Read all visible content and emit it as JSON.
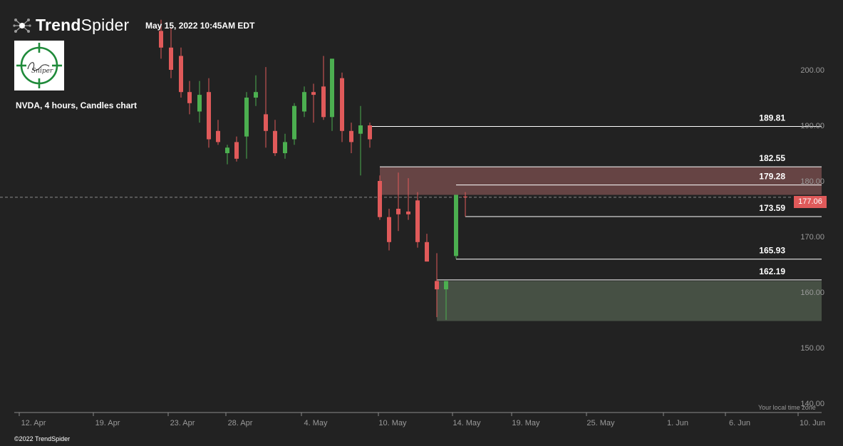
{
  "header": {
    "brand_bold": "Trend",
    "brand_light": "Spider",
    "timestamp": "May 15, 2022 10:45AM EDT"
  },
  "logo": {
    "icon": "crosshair-target-icon",
    "signature": "Sniper",
    "color": "#1f8a3a"
  },
  "chart_title": "NVDA, 4 hours, Candles chart",
  "timezone_label": "Your local time zone",
  "copyright": "©2022 TrendSpider",
  "colors": {
    "background": "#222222",
    "up": "#4caf50",
    "down": "#e05a5a",
    "resistance_zone": "#6d4848",
    "support_zone": "#4a5548",
    "level_line": "#ffffff",
    "axis_text": "#9a9a9a"
  },
  "chart_data": {
    "type": "candlestick",
    "title": "NVDA, 4 hours, Candles chart",
    "timeframe": "4 hours",
    "x_ticks": [
      "12. Apr",
      "19. Apr",
      "23. Apr",
      "28. Apr",
      "4. May",
      "10. May",
      "14. May",
      "19. May",
      "25. May",
      "1. Jun",
      "6. Jun",
      "10. Jun"
    ],
    "y_ticks": [
      140,
      150,
      160,
      170,
      180,
      190,
      200
    ],
    "y_tick_labels": [
      "140.00",
      "150.00",
      "160.00",
      "170.00",
      "180.00",
      "190.00",
      "200.00"
    ],
    "ylim": [
      140,
      210
    ],
    "current_price": 177.06,
    "current_price_label": "177.06",
    "levels": [
      {
        "price": 189.81,
        "label": "189.81"
      },
      {
        "price": 182.55,
        "label": "182.55"
      },
      {
        "price": 179.28,
        "label": "179.28"
      },
      {
        "price": 173.59,
        "label": "173.59"
      },
      {
        "price": 165.93,
        "label": "165.93"
      },
      {
        "price": 162.19,
        "label": "162.19"
      }
    ],
    "zones": [
      {
        "type": "resistance",
        "top": 182.55,
        "bottom": 177.5
      },
      {
        "type": "support",
        "top": 162.0,
        "bottom": 154.8
      }
    ],
    "candles": [
      {
        "o": 207.0,
        "h": 209.0,
        "l": 202.0,
        "c": 204.0
      },
      {
        "o": 204.0,
        "h": 207.5,
        "l": 198.5,
        "c": 200.0
      },
      {
        "o": 202.5,
        "h": 204.0,
        "l": 195.0,
        "c": 196.0
      },
      {
        "o": 196.0,
        "h": 198.0,
        "l": 192.0,
        "c": 194.0
      },
      {
        "o": 192.5,
        "h": 198.0,
        "l": 190.5,
        "c": 195.5
      },
      {
        "o": 196.0,
        "h": 198.5,
        "l": 186.0,
        "c": 187.5
      },
      {
        "o": 189.0,
        "h": 191.0,
        "l": 186.5,
        "c": 187.0
      },
      {
        "o": 185.0,
        "h": 186.5,
        "l": 183.0,
        "c": 186.0
      },
      {
        "o": 187.0,
        "h": 188.0,
        "l": 183.5,
        "c": 184.0
      },
      {
        "o": 188.0,
        "h": 196.0,
        "l": 184.0,
        "c": 195.0
      },
      {
        "o": 195.0,
        "h": 199.0,
        "l": 193.5,
        "c": 196.0
      },
      {
        "o": 192.0,
        "h": 200.5,
        "l": 186.0,
        "c": 189.0
      },
      {
        "o": 189.0,
        "h": 191.0,
        "l": 184.5,
        "c": 185.0
      },
      {
        "o": 185.0,
        "h": 188.5,
        "l": 184.0,
        "c": 187.0
      },
      {
        "o": 187.5,
        "h": 194.0,
        "l": 186.5,
        "c": 193.5
      },
      {
        "o": 192.5,
        "h": 197.0,
        "l": 191.5,
        "c": 196.0
      },
      {
        "o": 196.0,
        "h": 197.5,
        "l": 190.5,
        "c": 195.5
      },
      {
        "o": 197.0,
        "h": 202.5,
        "l": 191.0,
        "c": 191.5
      },
      {
        "o": 191.5,
        "h": 202.0,
        "l": 189.0,
        "c": 202.0
      },
      {
        "o": 198.5,
        "h": 199.5,
        "l": 187.0,
        "c": 189.0
      },
      {
        "o": 189.0,
        "h": 190.5,
        "l": 185.0,
        "c": 187.0
      },
      {
        "o": 188.5,
        "h": 193.5,
        "l": 181.0,
        "c": 190.0
      },
      {
        "o": 190.0,
        "h": 190.5,
        "l": 186.0,
        "c": 187.5
      },
      {
        "o": 180.0,
        "h": 181.0,
        "l": 173.0,
        "c": 173.5
      },
      {
        "o": 173.5,
        "h": 175.0,
        "l": 167.5,
        "c": 169.0
      },
      {
        "o": 175.0,
        "h": 181.5,
        "l": 171.0,
        "c": 174.0
      },
      {
        "o": 174.5,
        "h": 180.5,
        "l": 173.0,
        "c": 174.0
      },
      {
        "o": 176.5,
        "h": 178.0,
        "l": 168.0,
        "c": 169.0
      },
      {
        "o": 169.0,
        "h": 170.5,
        "l": 165.5,
        "c": 165.5
      },
      {
        "o": 162.0,
        "h": 167.0,
        "l": 155.5,
        "c": 160.5
      },
      {
        "o": 160.5,
        "h": 162.0,
        "l": 155.0,
        "c": 162.0
      },
      {
        "o": 166.5,
        "h": 177.5,
        "l": 166.0,
        "c": 177.5
      },
      {
        "o": 177.2,
        "h": 178.0,
        "l": 173.59,
        "c": 177.06
      }
    ]
  }
}
